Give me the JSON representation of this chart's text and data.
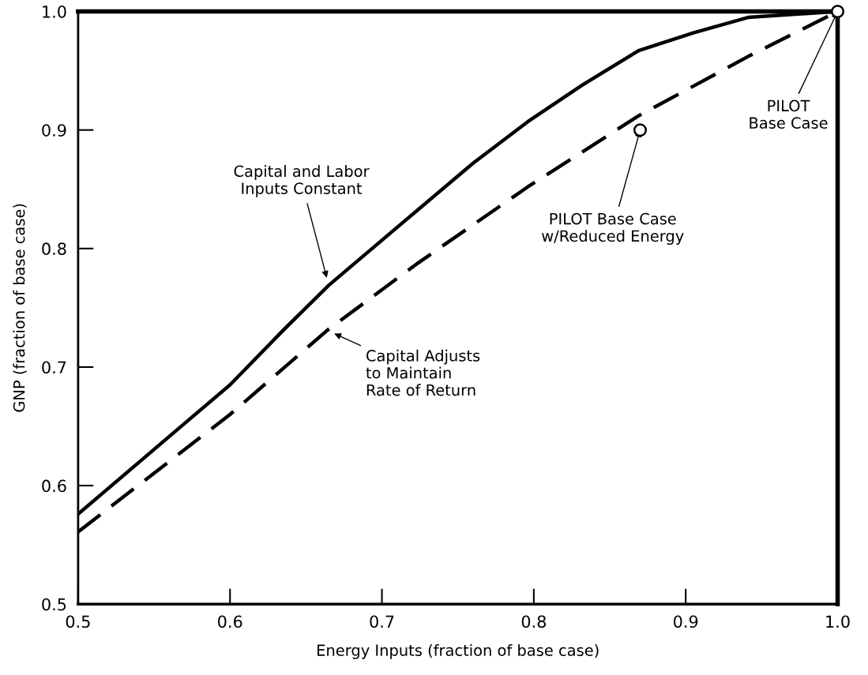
{
  "chart_data": {
    "type": "line",
    "xlabel": "Energy Inputs (fraction of base case)",
    "ylabel": "GNP (fraction of base case)",
    "xlim": [
      0.5,
      1.0
    ],
    "ylim": [
      0.5,
      1.0
    ],
    "xticks": [
      0.5,
      0.6,
      0.7,
      0.8,
      0.9,
      {
        "value": 1.0,
        "label": "1.0"
      }
    ],
    "yticks": [
      0.5,
      0.6,
      0.7,
      0.8,
      0.9,
      {
        "value": 1.0,
        "label": "1.0"
      }
    ],
    "grid": false,
    "legend": false,
    "series": [
      {
        "line_style": "solid",
        "color": "#000000",
        "x": [
          0.5,
          0.6,
          0.635,
          0.665,
          0.724,
          0.76,
          0.796,
          0.832,
          0.869,
          0.905,
          0.941,
          1.0
        ],
        "values": [
          0.576,
          0.685,
          0.731,
          0.769,
          0.833,
          0.872,
          0.907,
          0.938,
          0.967,
          0.982,
          0.995,
          1.0
        ]
      },
      {
        "line_style": "dashed",
        "color": "#000000",
        "x": [
          0.5,
          0.6,
          0.664,
          0.724,
          0.796,
          0.869,
          0.941,
          1.0
        ],
        "values": [
          0.561,
          0.66,
          0.731,
          0.788,
          0.852,
          0.912,
          0.962,
          1.0
        ]
      },
      {
        "type": "scatter",
        "marker": "circle",
        "color": "#000000",
        "x": [
          0.87,
          1.0
        ],
        "values": [
          0.9,
          1.0
        ]
      }
    ],
    "annotations": [
      "Capital and Labor\nInputs Constant",
      "Capital Adjusts\nto Maintain\nRate of Return",
      {
        "text": "PILOT Base Case\nw/Reduced Energy",
        "x": 0.87,
        "y": 0.9
      },
      {
        "text": "PILOT\nBase Case",
        "x": 1.0,
        "y": 1.0
      }
    ]
  }
}
